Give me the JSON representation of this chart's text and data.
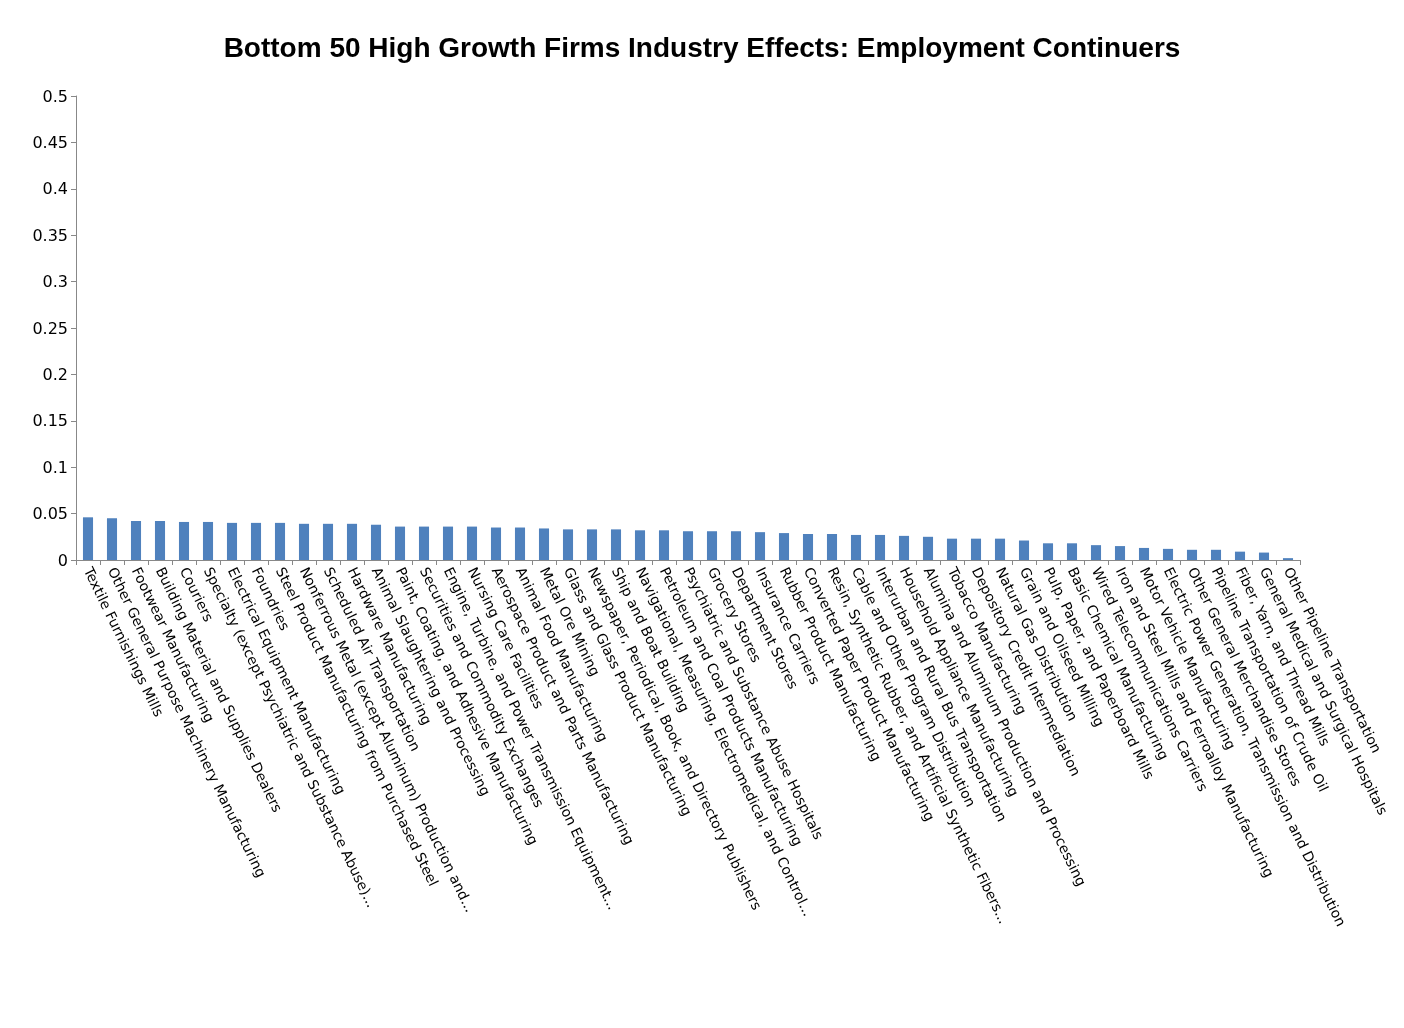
{
  "chart_data": {
    "type": "bar",
    "title": "Bottom 50 High Growth Firms Industry Effects: Employment Continuers",
    "categories": [
      "Textile Furnishings Mills",
      "Other General Purpose Machinery Manufacturing",
      "Footwear Manufacturing",
      "Building Material and Supplies Dealers",
      "Couriers",
      "Specialty (except Psychiatric and Substance Abuse)...",
      "Electrical Equipment Manufacturing",
      "Foundries",
      "Steel Product Manufacturing from Purchased Steel",
      "Nonferrous Metal (except Aluminum) Production and...",
      "Scheduled Air Transportation",
      "Hardware Manufacturing",
      "Animal Slaughtering and Processing",
      "Paint, Coating, and Adhesive Manufacturing",
      "Securities and Commodity Exchanges",
      "Engine, Turbine, and Power Transmission Equipment...",
      "Nursing Care Facilities",
      "Aerospace Product and Parts Manufacturing",
      "Animal Food Manufacturing",
      "Metal Ore Mining",
      "Glass and Glass Product Manufacturing",
      "Newspaper, Periodical, Book, and Directory Publishers",
      "Ship and Boat Building",
      "Navigational, Measuring, Electromedical, and Control...",
      "Petroleum and Coal Products Manufacturing",
      "Psychiatric and Substance Abuse Hospitals",
      "Grocery Stores",
      "Department Stores",
      "Insurance Carriers",
      "Rubber Product Manufacturing",
      "Converted Paper Product Manufacturing",
      "Resin, Synthetic Rubber, and Artificial Synthetic Fibers...",
      "Cable and Other Program Distribution",
      "Interurban and Rural Bus Transportation",
      "Household Appliance Manufacturing",
      "Alumina and Aluminum Production and Processing",
      "Tobacco Manufacturing",
      "Depository Credit Intermediation",
      "Natural Gas Distribution",
      "Grain and Oilseed Milling",
      "Pulp, Paper, and Paperboard Mills",
      "Basic Chemical Manufacturing",
      "Wired Telecommunications Carriers",
      "Iron and Steel Mills and Ferroalloy Manufacturing",
      "Motor Vehicle Manufacturing",
      "Electric Power Generation, Transmission and Distribution",
      "Other General Merchandise Stores",
      "Pipeline Transportation of Crude Oil",
      "Fiber, Yarn, and Thread Mills",
      "General Medical and Surgical Hospitals",
      "Other Pipeline Transportation"
    ],
    "values": [
      0.046,
      0.045,
      0.042,
      0.042,
      0.041,
      0.041,
      0.04,
      0.04,
      0.04,
      0.039,
      0.039,
      0.039,
      0.038,
      0.036,
      0.036,
      0.036,
      0.036,
      0.035,
      0.035,
      0.034,
      0.033,
      0.033,
      0.033,
      0.032,
      0.032,
      0.031,
      0.031,
      0.031,
      0.03,
      0.029,
      0.028,
      0.028,
      0.027,
      0.027,
      0.026,
      0.025,
      0.023,
      0.023,
      0.023,
      0.021,
      0.018,
      0.018,
      0.016,
      0.015,
      0.013,
      0.012,
      0.011,
      0.011,
      0.009,
      0.008,
      0.002
    ],
    "color": "#4f81bd",
    "ylim": [
      0,
      0.5
    ],
    "yticks": [
      0,
      0.05,
      0.1,
      0.15,
      0.2,
      0.25,
      0.3,
      0.35,
      0.4,
      0.45,
      0.5
    ],
    "grid": false
  }
}
